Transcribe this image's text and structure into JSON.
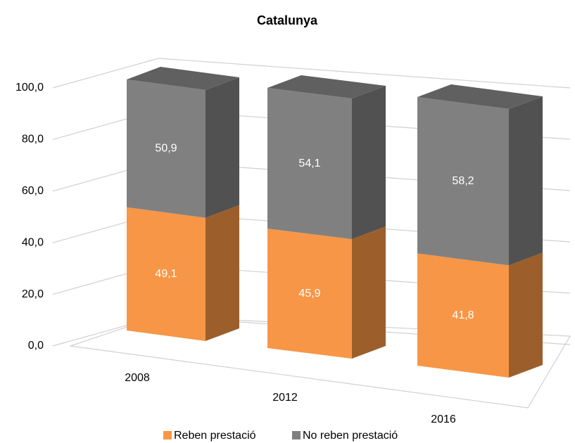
{
  "chart_data": {
    "type": "bar3d_stacked",
    "title": "Catalunya",
    "categories": [
      "2008",
      "2012",
      "2016"
    ],
    "series": [
      {
        "name": "Reben prestació",
        "color": "#F79646",
        "values": [
          49.1,
          45.9,
          41.8
        ],
        "value_labels": [
          "49,1",
          "45,9",
          "41,8"
        ]
      },
      {
        "name": "No reben prestació",
        "color": "#808080",
        "values": [
          50.9,
          54.1,
          58.2
        ],
        "value_labels": [
          "50,9",
          "54,1",
          "58,2"
        ]
      }
    ],
    "ylim": [
      0,
      100
    ],
    "yticks": [
      {
        "value": 0,
        "label": "0,0"
      },
      {
        "value": 20,
        "label": "20,0"
      },
      {
        "value": 40,
        "label": "40,0"
      },
      {
        "value": 60,
        "label": "60,0"
      },
      {
        "value": 80,
        "label": "80,0"
      },
      {
        "value": 100,
        "label": "100,0"
      }
    ],
    "grid": true,
    "legend": "bottom"
  }
}
